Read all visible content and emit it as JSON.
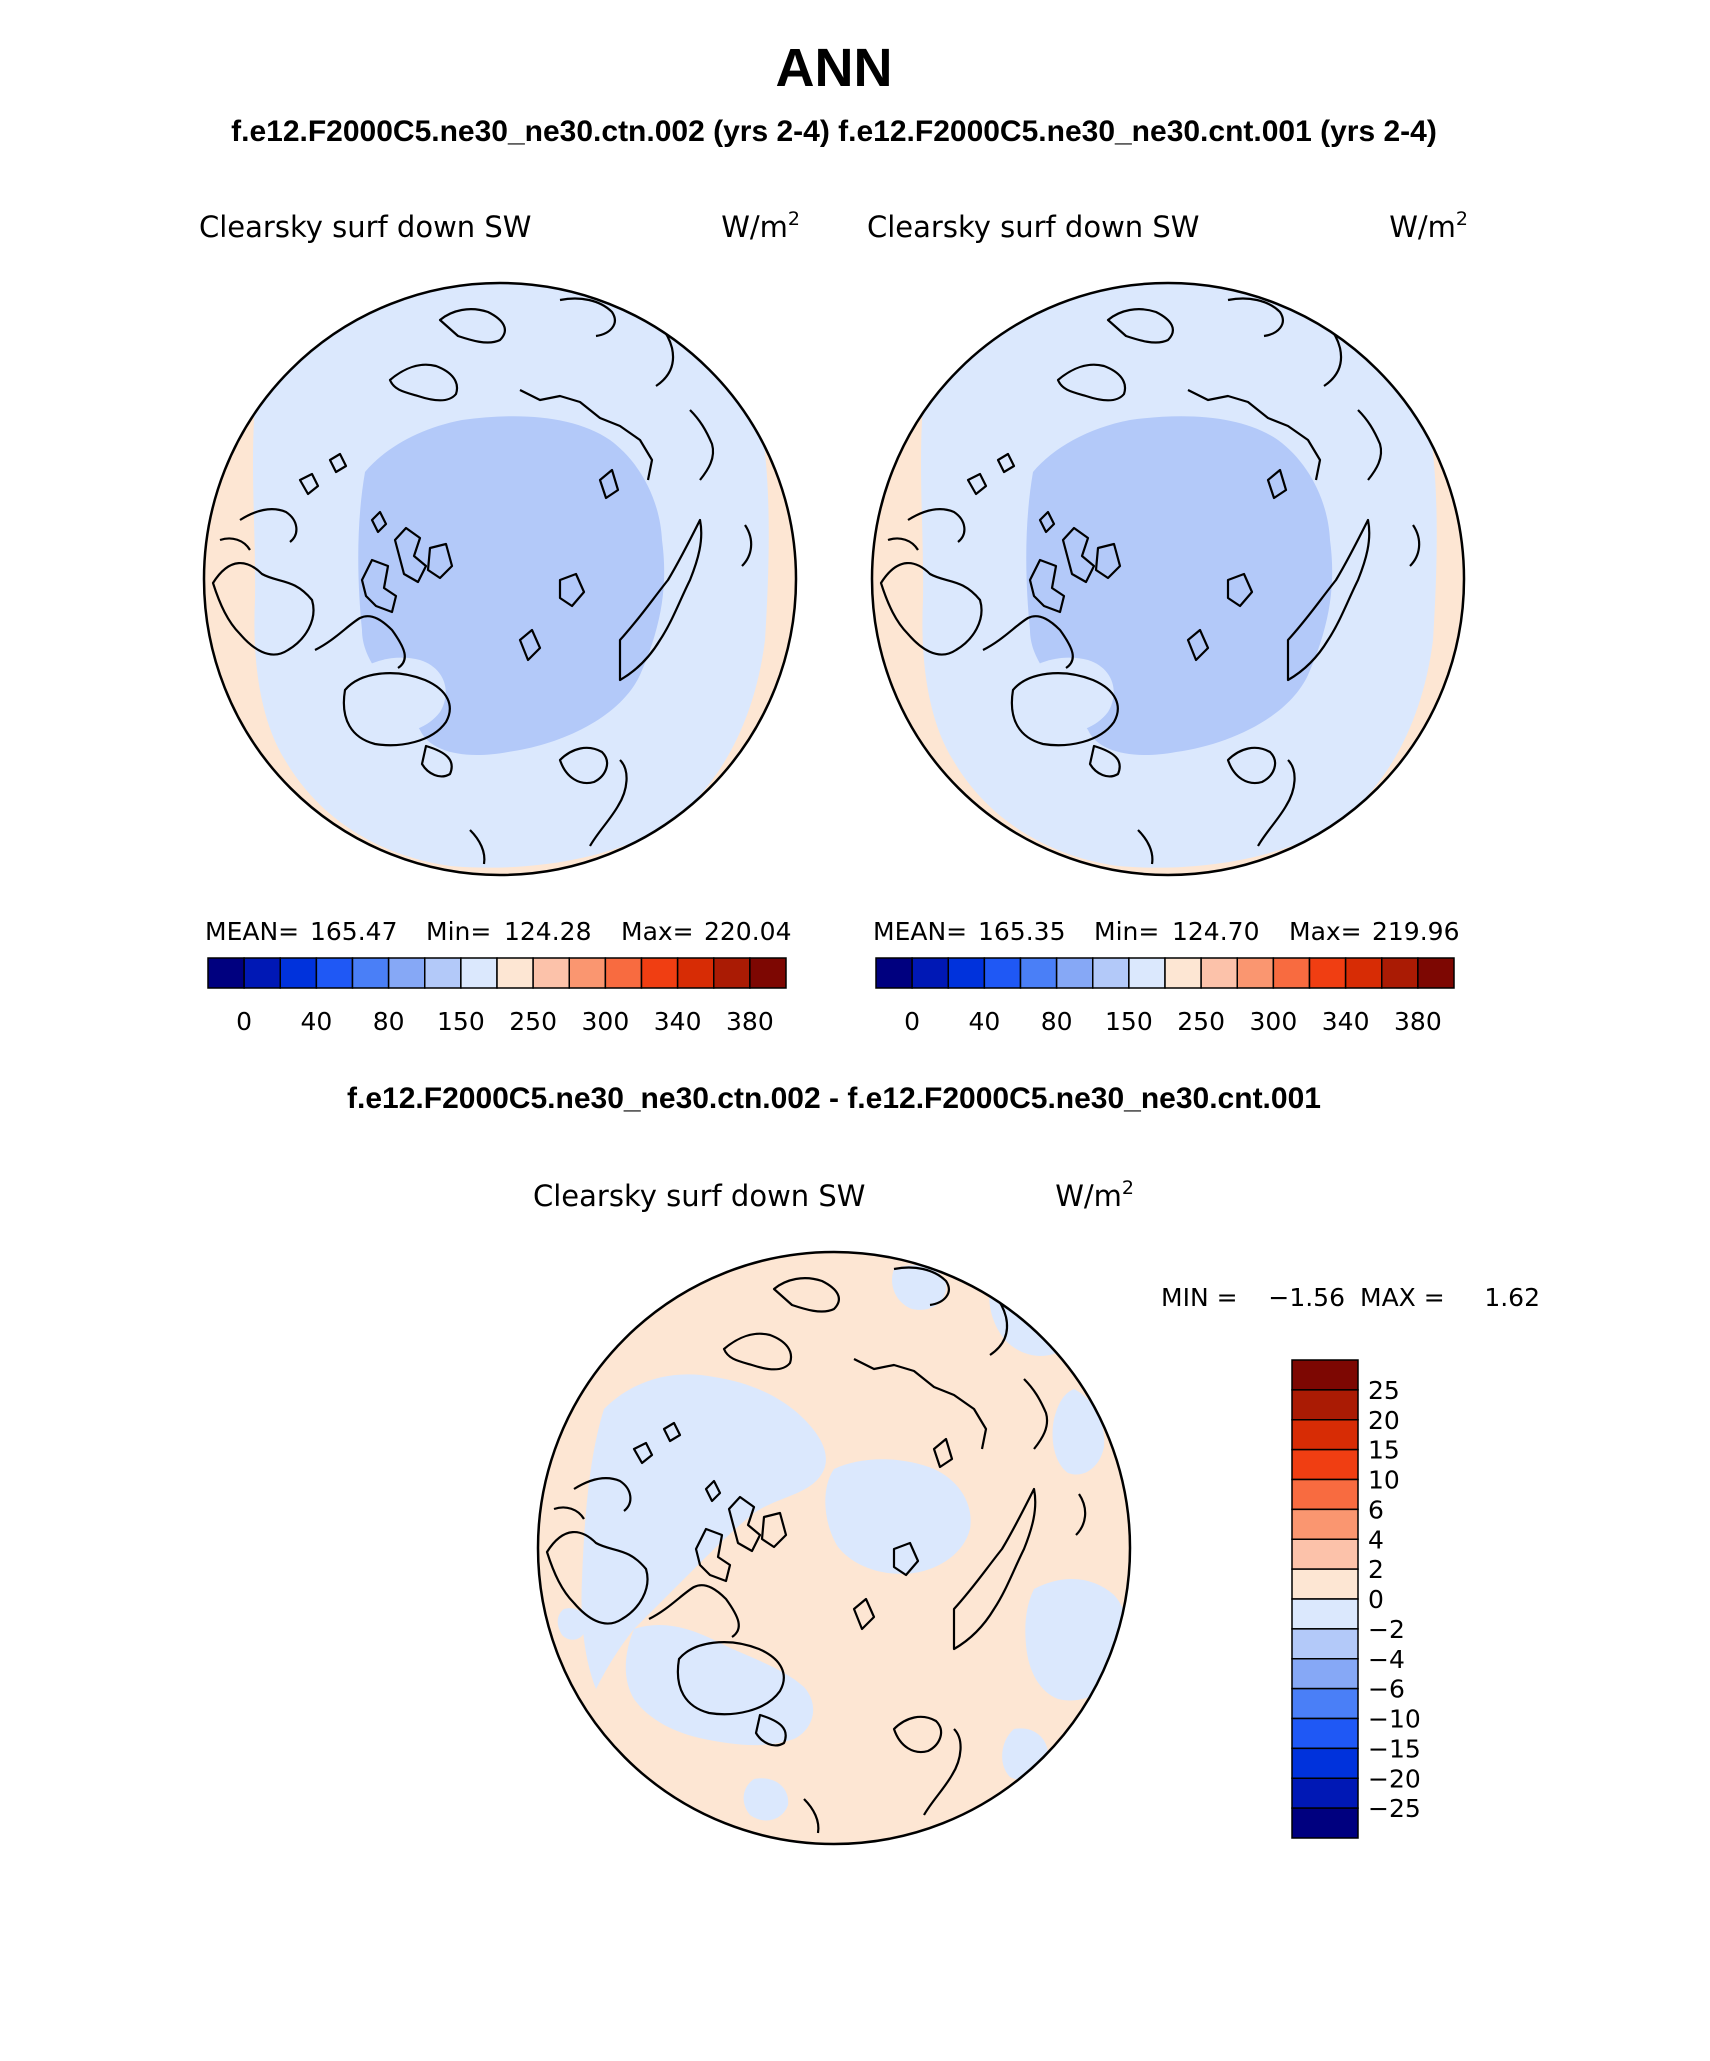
{
  "header": {
    "title": "ANN",
    "subtitle": "f.e12.F2000C5.ne30_ne30.ctn.002 (yrs 2-4) f.e12.F2000C5.ne30_ne30.cnt.001 (yrs 2-4)",
    "diff_title": "f.e12.F2000C5.ne30_ne30.ctn.002 - f.e12.F2000C5.ne30_ne30.cnt.001"
  },
  "panels": [
    {
      "variable": "Clearsky surf down SW",
      "units_base": "W/m",
      "units_exp": "2",
      "stats": {
        "mean_label": "MEAN=",
        "mean": "165.47",
        "min_label": "Min=",
        "min": "124.28",
        "max_label": "Max=",
        "max": "220.04"
      }
    },
    {
      "variable": "Clearsky surf down SW",
      "units_base": "W/m",
      "units_exp": "2",
      "stats": {
        "mean_label": "MEAN=",
        "mean": "165.35",
        "min_label": "Min=",
        "min": "124.70",
        "max_label": "Max=",
        "max": "219.96"
      }
    }
  ],
  "diff_panel": {
    "variable": "Clearsky surf down SW",
    "units_base": "W/m",
    "units_exp": "2",
    "min_label": "MIN =",
    "min": "−1.56",
    "max_label": "MAX =",
    "max": "1.62"
  },
  "colorbar_abs": {
    "colors": [
      "#00007f",
      "#0018b5",
      "#0032dc",
      "#1f58f5",
      "#4a7ff7",
      "#86a8f6",
      "#b3c9f9",
      "#dbe8fd",
      "#fde6d3",
      "#fcc2aa",
      "#fa9670",
      "#f86b40",
      "#f03e12",
      "#d72c05",
      "#aa1b04",
      "#7d0702"
    ],
    "tick_labels": [
      "0",
      "40",
      "80",
      "150",
      "250",
      "300",
      "340",
      "380"
    ]
  },
  "colorbar_diff": {
    "colors": [
      "#7d0702",
      "#aa1b04",
      "#d72c05",
      "#f03e12",
      "#f86b40",
      "#fa9670",
      "#fcc2aa",
      "#fde6d3",
      "#dbe8fd",
      "#b3c9f9",
      "#86a8f6",
      "#4a7ff7",
      "#1f58f5",
      "#0032dc",
      "#0018b5",
      "#00007f"
    ],
    "tick_labels": [
      "25",
      "20",
      "15",
      "10",
      "6",
      "4",
      "2",
      "0",
      "−2",
      "−4",
      "−6",
      "−10",
      "−15",
      "−20",
      "−25"
    ]
  },
  "map_colors": {
    "polar": "#b3c9f9",
    "midlat": "#dbe8fd",
    "rim": "#fde6d3",
    "diff_positive": "#fde6d3",
    "diff_negative": "#dbe8fd"
  }
}
